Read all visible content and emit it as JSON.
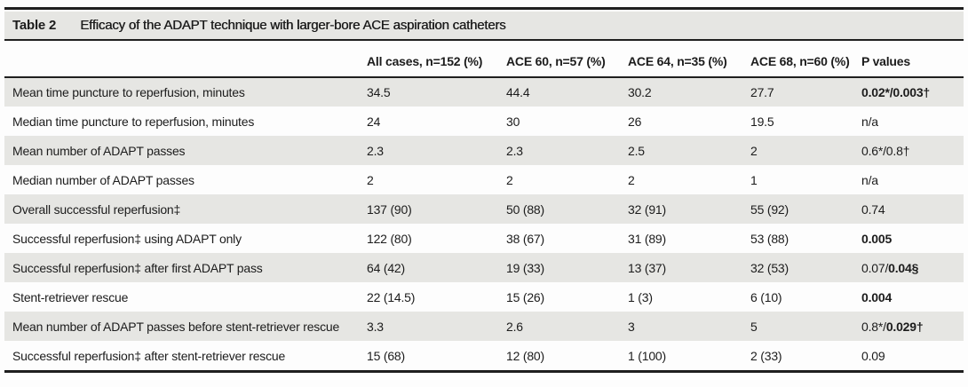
{
  "colors": {
    "row_shade": "#e6e6e3",
    "rule": "#1f1f1f",
    "text": "#1c1c1c",
    "background": "#fdfdfd"
  },
  "table": {
    "label": "Table 2",
    "title": "Efficacy of the ADAPT technique with larger-bore ACE aspiration catheters",
    "columns": [
      "",
      "All cases, n=152 (%)",
      "ACE 60, n=57 (%)",
      "ACE 64, n=35 (%)",
      "ACE 68, n=60 (%)",
      "P values"
    ],
    "rows": [
      {
        "label": "Mean time puncture to reperfusion, minutes",
        "values": [
          "34.5",
          "44.4",
          "30.2",
          "27.7"
        ],
        "p": [
          {
            "t": "0.02*/0.003†",
            "b": true
          }
        ]
      },
      {
        "label": "Median time puncture to reperfusion, minutes",
        "values": [
          "24",
          "30",
          "26",
          "19.5"
        ],
        "p": [
          {
            "t": "n/a",
            "b": false
          }
        ]
      },
      {
        "label": "Mean number of ADAPT passes",
        "values": [
          "2.3",
          "2.3",
          "2.5",
          "2"
        ],
        "p": [
          {
            "t": "0.6*/0.8†",
            "b": false
          }
        ]
      },
      {
        "label": "Median number of ADAPT passes",
        "values": [
          "2",
          "2",
          "2",
          "1"
        ],
        "p": [
          {
            "t": "n/a",
            "b": false
          }
        ]
      },
      {
        "label": "Overall successful reperfusion‡",
        "values": [
          "137 (90)",
          "50 (88)",
          "32 (91)",
          "55 (92)"
        ],
        "p": [
          {
            "t": "0.74",
            "b": false
          }
        ]
      },
      {
        "label": "Successful reperfusion‡ using ADAPT only",
        "values": [
          "122 (80)",
          "38 (67)",
          "31 (89)",
          "53 (88)"
        ],
        "p": [
          {
            "t": "0.005",
            "b": true
          }
        ]
      },
      {
        "label": "Successful reperfusion‡ after first ADAPT pass",
        "values": [
          "64 (42)",
          "19 (33)",
          "13 (37)",
          "32 (53)"
        ],
        "p": [
          {
            "t": "0.07/",
            "b": false
          },
          {
            "t": "0.04§",
            "b": true
          }
        ]
      },
      {
        "label": "Stent-retriever rescue",
        "values": [
          "22 (14.5)",
          "15 (26)",
          "1 (3)",
          "6 (10)"
        ],
        "p": [
          {
            "t": "0.004",
            "b": true
          }
        ]
      },
      {
        "label": "Mean number of ADAPT passes before stent-retriever rescue",
        "values": [
          "3.3",
          "2.6",
          "3",
          "5"
        ],
        "p": [
          {
            "t": "0.8*/",
            "b": false
          },
          {
            "t": "0.029†",
            "b": true
          }
        ]
      },
      {
        "label": "Successful reperfusion‡ after stent-retriever rescue",
        "values": [
          "15 (68)",
          "12 (80)",
          "1 (100)",
          "2 (33)"
        ],
        "p": [
          {
            "t": "0.09",
            "b": false
          }
        ]
      }
    ]
  }
}
